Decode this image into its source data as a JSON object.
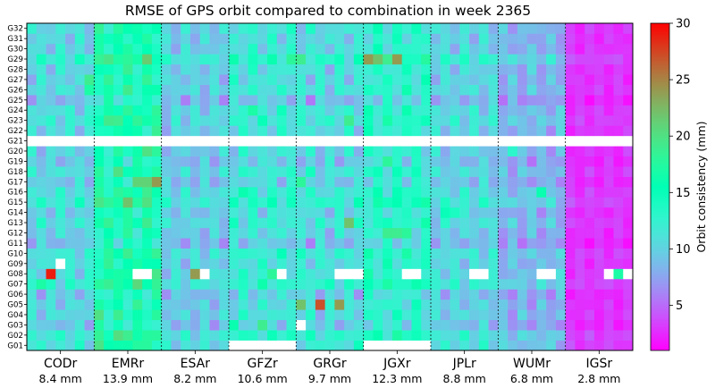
{
  "chart_data": {
    "type": "heatmap",
    "title": "RMSE of GPS orbit compared to combination in week 2365",
    "xlabel": "",
    "ylabel": "",
    "rows": [
      "G01",
      "G02",
      "G03",
      "G04",
      "G05",
      "G06",
      "G07",
      "G08",
      "G09",
      "G10",
      "G11",
      "G12",
      "G13",
      "G14",
      "G15",
      "G16",
      "G17",
      "G18",
      "G19",
      "G20",
      "G21",
      "G22",
      "G23",
      "G24",
      "G25",
      "G26",
      "G27",
      "G28",
      "G29",
      "G30",
      "G31",
      "G32"
    ],
    "days_per_center": 7,
    "centers": [
      {
        "name": "CODr",
        "summary": "8.4 mm",
        "base": 10.5,
        "amp": 2.4,
        "hot": [
          [
            7,
            2,
            29
          ],
          [
            8,
            3,
            "nan"
          ],
          [
            6,
            1,
            17
          ],
          [
            26,
            6,
            19
          ],
          [
            25,
            6,
            17
          ]
        ]
      },
      {
        "name": "EMRr",
        "summary": "13.9 mm",
        "base": 15.5,
        "amp": 3.2,
        "hot": [
          [
            7,
            4,
            "nan"
          ],
          [
            7,
            5,
            "nan"
          ],
          [
            14,
            3,
            22
          ],
          [
            16,
            4,
            21
          ],
          [
            16,
            5,
            21
          ],
          [
            16,
            6,
            24
          ],
          [
            17,
            2,
            20
          ],
          [
            15,
            5,
            19
          ],
          [
            3,
            0,
            20
          ],
          [
            22,
            2,
            19
          ],
          [
            1,
            3,
            19
          ],
          [
            19,
            5,
            20
          ]
        ]
      },
      {
        "name": "ESAr",
        "summary": "8.2 mm",
        "base": 9.8,
        "amp": 2.2,
        "hot": [
          [
            7,
            3,
            24
          ],
          [
            7,
            4,
            "nan"
          ],
          [
            22,
            0,
            8
          ]
        ]
      },
      {
        "name": "GFZr",
        "summary": "10.6 mm",
        "base": 11.5,
        "amp": 2.6,
        "hot": [
          [
            0,
            0,
            "nan"
          ],
          [
            0,
            1,
            "nan"
          ],
          [
            0,
            2,
            "nan"
          ],
          [
            0,
            3,
            "nan"
          ],
          [
            0,
            4,
            "nan"
          ],
          [
            0,
            5,
            "nan"
          ],
          [
            0,
            6,
            "nan"
          ],
          [
            7,
            4,
            18
          ],
          [
            7,
            5,
            "nan"
          ],
          [
            2,
            3,
            19
          ],
          [
            2,
            0,
            16
          ],
          [
            23,
            2,
            17
          ],
          [
            28,
            6,
            18
          ],
          [
            15,
            1,
            16
          ]
        ]
      },
      {
        "name": "GRGr",
        "summary": "9.7 mm",
        "base": 10.8,
        "amp": 2.8,
        "hot": [
          [
            7,
            4,
            "nan"
          ],
          [
            7,
            5,
            "nan"
          ],
          [
            7,
            6,
            "nan"
          ],
          [
            4,
            2,
            27
          ],
          [
            4,
            0,
            22
          ],
          [
            4,
            4,
            24
          ],
          [
            2,
            0,
            "nan"
          ],
          [
            22,
            5,
            19
          ],
          [
            12,
            5,
            22
          ],
          [
            16,
            0,
            18
          ],
          [
            28,
            0,
            19
          ]
        ]
      },
      {
        "name": "JGXr",
        "summary": "12.3 mm",
        "base": 12.8,
        "amp": 2.8,
        "hot": [
          [
            0,
            0,
            "nan"
          ],
          [
            0,
            1,
            "nan"
          ],
          [
            0,
            2,
            "nan"
          ],
          [
            0,
            3,
            "nan"
          ],
          [
            0,
            4,
            "nan"
          ],
          [
            0,
            5,
            "nan"
          ],
          [
            0,
            6,
            "nan"
          ],
          [
            7,
            4,
            "nan"
          ],
          [
            7,
            5,
            "nan"
          ],
          [
            28,
            0,
            24
          ],
          [
            28,
            1,
            22
          ],
          [
            28,
            3,
            24
          ],
          [
            28,
            2,
            19
          ],
          [
            11,
            2,
            19
          ],
          [
            11,
            3,
            19
          ],
          [
            11,
            4,
            18
          ],
          [
            18,
            2,
            18
          ]
        ]
      },
      {
        "name": "JPLr",
        "summary": "8.8 mm",
        "base": 10.2,
        "amp": 2.3,
        "hot": [
          [
            7,
            4,
            "nan"
          ],
          [
            7,
            5,
            "nan"
          ],
          [
            13,
            1,
            15
          ],
          [
            13,
            2,
            14
          ],
          [
            28,
            3,
            14
          ]
        ]
      },
      {
        "name": "WUMr",
        "summary": "6.8 mm",
        "base": 8.4,
        "amp": 2.0,
        "hot": [
          [
            7,
            4,
            "nan"
          ],
          [
            7,
            5,
            "nan"
          ],
          [
            15,
            4,
            16
          ],
          [
            19,
            1,
            13
          ]
        ]
      },
      {
        "name": "IGSr",
        "summary": "2.8 mm",
        "base": 3.0,
        "amp": 0.9,
        "hot": [
          [
            7,
            4,
            "nan"
          ],
          [
            7,
            5,
            17
          ],
          [
            7,
            6,
            "nan"
          ]
        ]
      }
    ],
    "nan_rows": [
      "G21"
    ],
    "colorbar": {
      "label": "Orbit consistency (mm)",
      "min": 1,
      "max": 30,
      "ticks": [
        5,
        10,
        15,
        20,
        25,
        30
      ]
    }
  }
}
